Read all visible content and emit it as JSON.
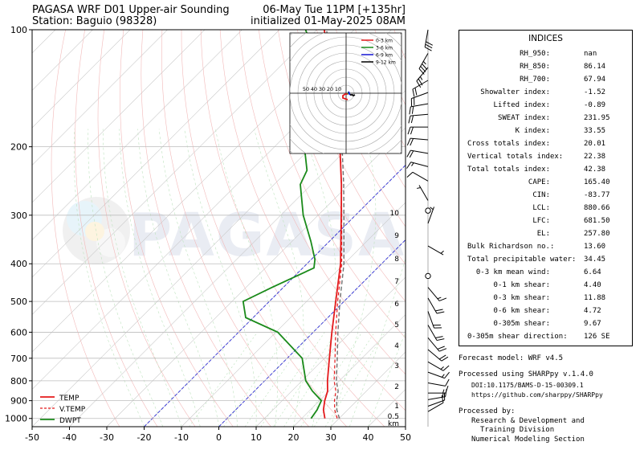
{
  "header": {
    "title_line1": "PAGASA WRF D01 Upper-air Sounding",
    "title_line2": "Station: Baguio (98328)",
    "valid_line": "06-May Tue 11PM [+135hr]",
    "init_line": "initialized 01-May-2025 08AM"
  },
  "watermark": "PAGASA",
  "chart_data": {
    "type": "line",
    "subtype": "skew-T log-P sounding",
    "xlabel": "",
    "ylabel": "",
    "xlim": [
      -50,
      50
    ],
    "ylim": [
      1050,
      100
    ],
    "y_scale": "log",
    "x_ticks": [
      -50,
      -40,
      -30,
      -20,
      -10,
      0,
      10,
      20,
      30,
      40,
      50
    ],
    "y_ticks": [
      100,
      200,
      300,
      400,
      500,
      600,
      700,
      800,
      900,
      1000
    ],
    "grid": true,
    "legend_position": "lower-left",
    "series": [
      {
        "name": "TEMP",
        "color": "#e41a1c",
        "style": "solid",
        "points": [
          [
            1000,
            26.2
          ],
          [
            950,
            23.5
          ],
          [
            900,
            21.4
          ],
          [
            850,
            19.6
          ],
          [
            800,
            16.8
          ],
          [
            700,
            11.3
          ],
          [
            600,
            5.0
          ],
          [
            500,
            -2.2
          ],
          [
            400,
            -11.0
          ],
          [
            300,
            -23.8
          ],
          [
            250,
            -32.0
          ],
          [
            200,
            -42.5
          ],
          [
            150,
            -56.0
          ],
          [
            120,
            -68.5
          ],
          [
            110,
            -73.0
          ],
          [
            100,
            -78.0
          ]
        ]
      },
      {
        "name": "V.TEMP",
        "color": "#e41a1c",
        "style": "dashed",
        "points": [
          [
            1000,
            29.5
          ],
          [
            950,
            26.5
          ],
          [
            900,
            24.0
          ],
          [
            850,
            21.8
          ],
          [
            800,
            18.6
          ],
          [
            700,
            12.8
          ],
          [
            600,
            6.0
          ],
          [
            500,
            -1.7
          ],
          [
            400,
            -10.7
          ],
          [
            300,
            -23.7
          ],
          [
            250,
            -32.0
          ],
          [
            200,
            -42.5
          ],
          [
            150,
            -56.0
          ],
          [
            120,
            -68.5
          ],
          [
            110,
            -73.0
          ],
          [
            100,
            -78.0
          ]
        ]
      },
      {
        "name": "DWPT",
        "color": "#1a8a1a",
        "style": "solid",
        "points": [
          [
            1000,
            22.5
          ],
          [
            950,
            21.8
          ],
          [
            900,
            20.5
          ],
          [
            850,
            15.5
          ],
          [
            800,
            11.0
          ],
          [
            700,
            4.0
          ],
          [
            600,
            -9.5
          ],
          [
            550,
            -22.0
          ],
          [
            500,
            -27.0
          ],
          [
            460,
            -23.0
          ],
          [
            410,
            -17.0
          ],
          [
            390,
            -19.0
          ],
          [
            350,
            -25.0
          ],
          [
            300,
            -34.0
          ],
          [
            250,
            -43.0
          ],
          [
            230,
            -45.0
          ],
          [
            200,
            -52.0
          ],
          [
            150,
            -65.0
          ],
          [
            130,
            -70.0
          ],
          [
            120,
            -73.0
          ],
          [
            110,
            -77.0
          ],
          [
            100,
            -83.0
          ]
        ]
      }
    ],
    "height_km_labels": [
      "10",
      "9",
      "8",
      "7",
      "6",
      "5",
      "4",
      "3",
      "2",
      "1",
      "0.5",
      "km"
    ],
    "hodograph": {
      "ring_labels": [
        "50",
        "40",
        "30",
        "20",
        "10"
      ],
      "legend": [
        {
          "name": "0-3 km",
          "color": "#e41a1c"
        },
        {
          "name": "3-6 km",
          "color": "#1a8a1a"
        },
        {
          "name": "6-9 km",
          "color": "#1414d2"
        },
        {
          "name": "9-12 km",
          "color": "#000000"
        }
      ],
      "segments": [
        {
          "layer": "0-3 km",
          "points": [
            [
              2,
              8
            ],
            [
              -4,
              6
            ],
            [
              -4,
              3
            ],
            [
              -1,
              1
            ],
            [
              2,
              1
            ]
          ]
        },
        {
          "layer": "3-6 km",
          "points": [
            [
              2,
              1
            ],
            [
              3,
              0
            ],
            [
              3,
              -2
            ]
          ]
        },
        {
          "layer": "6-9 km",
          "points": [
            [
              3,
              -2
            ],
            [
              4,
              0
            ],
            [
              4,
              1
            ],
            [
              5,
              2
            ]
          ]
        },
        {
          "layer": "9-12 km",
          "points": [
            [
              5,
              2
            ],
            [
              8,
              2
            ],
            [
              9,
              3
            ],
            [
              11,
              2
            ]
          ]
        }
      ]
    }
  },
  "indices": {
    "title": "INDICES",
    "rows": [
      {
        "label": "RH_950:",
        "value": "nan"
      },
      {
        "label": "RH_850:",
        "value": "86.14"
      },
      {
        "label": "RH_700:",
        "value": "67.94"
      },
      {
        "label": "Showalter index:",
        "value": "-1.52"
      },
      {
        "label": "Lifted index:",
        "value": "-0.89"
      },
      {
        "label": "SWEAT index:",
        "value": "231.95"
      },
      {
        "label": "K index:",
        "value": "33.55"
      },
      {
        "label": "Cross totals index:",
        "value": "20.01"
      },
      {
        "label": "Vertical totals index:",
        "value": "22.38"
      },
      {
        "label": "Total totals index:",
        "value": "42.38"
      },
      {
        "label": "CAPE:",
        "value": "165.40"
      },
      {
        "label": "CIN:",
        "value": "-83.77"
      },
      {
        "label": "LCL:",
        "value": "880.66"
      },
      {
        "label": "LFC:",
        "value": "681.50"
      },
      {
        "label": "EL:",
        "value": "257.80"
      },
      {
        "label": "Bulk Richardson no.:",
        "value": "13.60"
      },
      {
        "label": "Total precipitable water:",
        "value": "34.45"
      },
      {
        "label": "0-3 km mean wind:",
        "value": "6.64"
      },
      {
        "label": "0-1 km shear:",
        "value": "4.40"
      },
      {
        "label": "0-3 km shear:",
        "value": "11.88"
      },
      {
        "label": "0-6 km shear:",
        "value": "4.72"
      },
      {
        "label": "0-305m shear:",
        "value": "9.67"
      },
      {
        "label": "0-305m shear direction:",
        "value": "126 SE"
      }
    ]
  },
  "footer": {
    "model": "Forecast model: WRF v4.5",
    "processed_with": "Processed using SHARPpy v.1.4.0",
    "doi": "DOI:10.1175/BAMS-D-15-00309.1",
    "url": "https://github.com/sharppy/SHARPpy",
    "processed_by": "Processed by:",
    "division_line1": "Research & Development and",
    "division_line2": "Training Division",
    "section": "Numerical Modeling Section"
  },
  "wind_barbs": [
    {
      "p": 100,
      "dir": 10,
      "spd": 30
    },
    {
      "p": 115,
      "dir": 30,
      "spd": 35
    },
    {
      "p": 125,
      "dir": 40,
      "spd": 25
    },
    {
      "p": 135,
      "dir": 60,
      "spd": 20
    },
    {
      "p": 145,
      "dir": 70,
      "spd": 20
    },
    {
      "p": 155,
      "dir": 80,
      "spd": 20
    },
    {
      "p": 165,
      "dir": 85,
      "spd": 20
    },
    {
      "p": 178,
      "dir": 90,
      "spd": 20
    },
    {
      "p": 192,
      "dir": 95,
      "spd": 20
    },
    {
      "p": 208,
      "dir": 100,
      "spd": 20
    },
    {
      "p": 225,
      "dir": 105,
      "spd": 15
    },
    {
      "p": 245,
      "dir": 120,
      "spd": 10
    },
    {
      "p": 275,
      "dir": 150,
      "spd": 5
    },
    {
      "p": 315,
      "dir": 200,
      "spd": 5
    },
    {
      "p": 360,
      "dir": 300,
      "spd": 5
    },
    {
      "p": 460,
      "dir": 320,
      "spd": 15
    },
    {
      "p": 490,
      "dir": 330,
      "spd": 20
    },
    {
      "p": 530,
      "dir": 340,
      "spd": 20
    },
    {
      "p": 575,
      "dir": 330,
      "spd": 20
    },
    {
      "p": 620,
      "dir": 320,
      "spd": 20
    },
    {
      "p": 665,
      "dir": 310,
      "spd": 20
    },
    {
      "p": 715,
      "dir": 300,
      "spd": 15
    },
    {
      "p": 760,
      "dir": 290,
      "spd": 15
    },
    {
      "p": 810,
      "dir": 280,
      "spd": 10
    },
    {
      "p": 860,
      "dir": 270,
      "spd": 15
    },
    {
      "p": 895,
      "dir": 260,
      "spd": 15
    },
    {
      "p": 930,
      "dir": 250,
      "spd": 10
    },
    {
      "p": 960,
      "dir": 240,
      "spd": 10
    }
  ],
  "calm_levels": [
    292,
    430
  ]
}
